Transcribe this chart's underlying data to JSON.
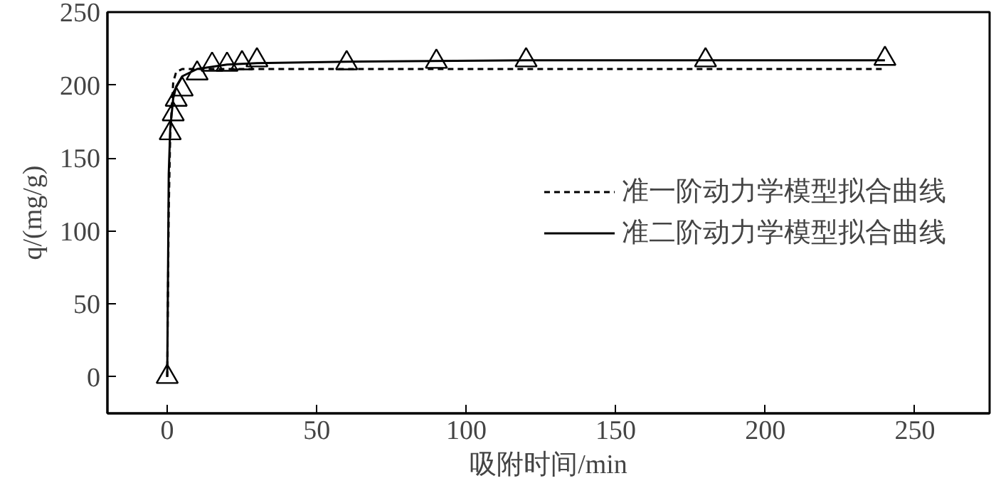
{
  "chart_data": {
    "type": "scatter",
    "xlabel": "吸附时间/min",
    "ylabel": "q/(mg/g)",
    "xlim": [
      -20,
      275
    ],
    "ylim": [
      -25,
      250
    ],
    "xticks": [
      0,
      50,
      100,
      150,
      200,
      250
    ],
    "yticks": [
      0,
      50,
      100,
      150,
      200,
      250
    ],
    "grid": false,
    "legend": "right",
    "series": [
      {
        "marker": "triangle",
        "color": "#000000",
        "x": [
          0,
          1,
          2,
          3,
          5,
          10,
          15,
          20,
          25,
          30,
          60,
          90,
          120,
          180,
          240
        ],
        "values": [
          0,
          167,
          180,
          190,
          197,
          208,
          214,
          214,
          215,
          217,
          215,
          216,
          217,
          217,
          218
        ]
      },
      {
        "type": "line",
        "name": "准一阶动力学模型拟合曲线",
        "line_style": "dashed",
        "color": "#000000",
        "x": [
          0,
          0.5,
          1,
          2,
          3,
          5,
          10,
          240
        ],
        "values": [
          0,
          114,
          166,
          202,
          209,
          211,
          211,
          211
        ]
      },
      {
        "type": "line",
        "name": "准二阶动力学模型拟合曲线",
        "line_style": "solid",
        "color": "#000000",
        "x": [
          0,
          0.5,
          1,
          2,
          3,
          5,
          10,
          20,
          30,
          60,
          120,
          240
        ],
        "values": [
          0,
          139,
          170,
          191,
          199,
          206,
          211,
          214,
          215,
          216,
          217,
          217
        ]
      }
    ]
  }
}
